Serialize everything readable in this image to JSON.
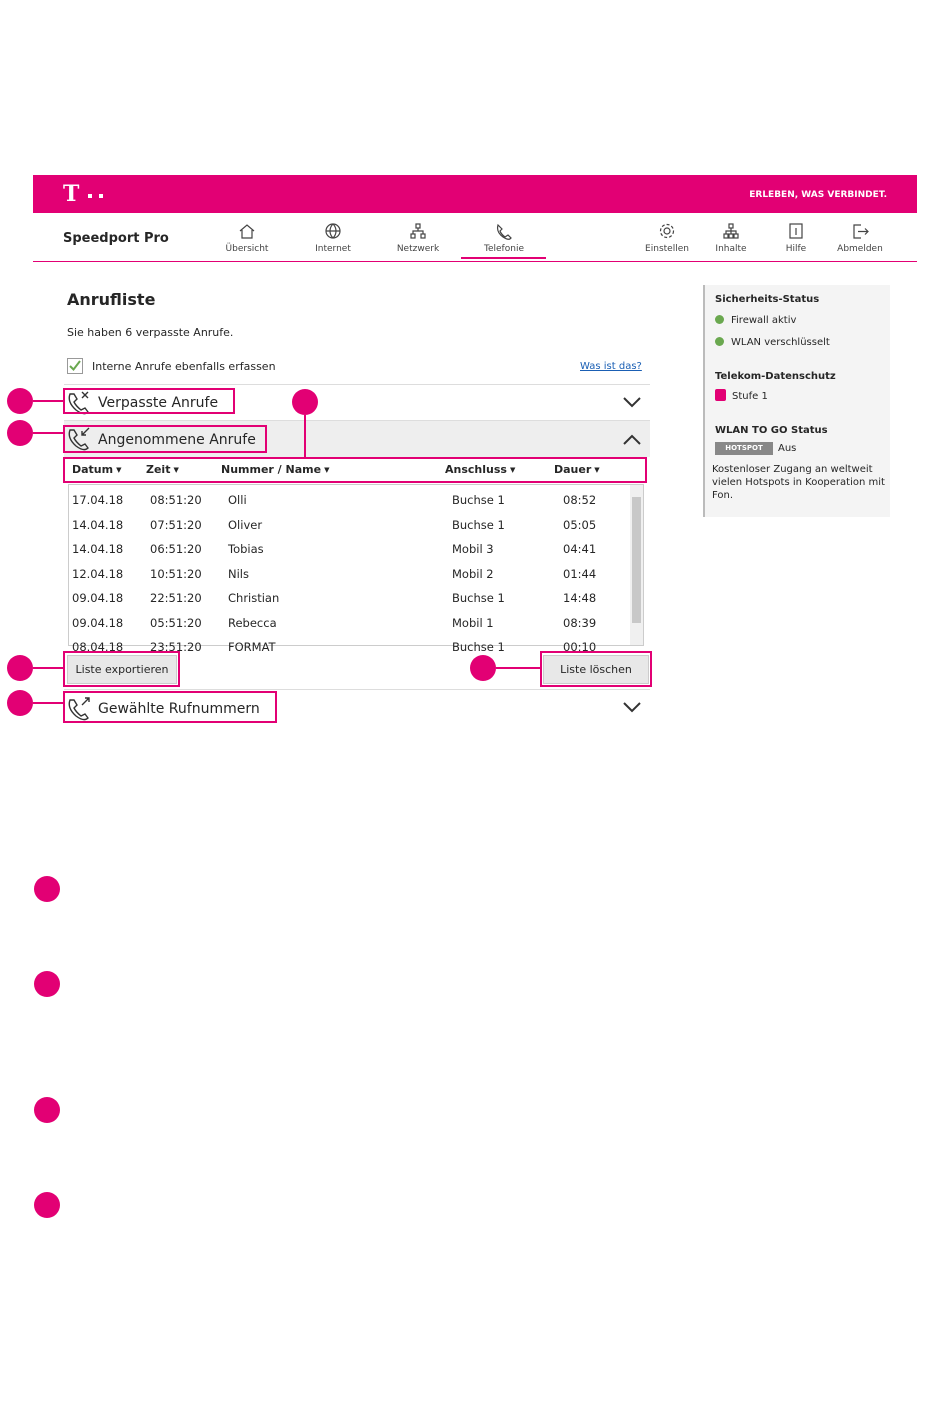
{
  "header": {
    "logo": "T",
    "slogan": "ERLEBEN, WAS VERBINDET."
  },
  "nav": {
    "product": "Speedport Pro",
    "items": [
      "Übersicht",
      "Internet",
      "Netzwerk",
      "Telefonie",
      "Einstellen",
      "Inhalte",
      "Hilfe",
      "Abmelden"
    ]
  },
  "main": {
    "title": "Anrufliste",
    "message": "Sie haben 6 verpasste Anrufe.",
    "checkbox": "Interne Anrufe ebenfalls erfassen",
    "help_link": "Was ist das?",
    "sections": [
      "Verpasste Anrufe",
      "Angenommene Anrufe",
      "Gewählte Rufnummern"
    ],
    "table": {
      "columns": [
        "Datum",
        "Zeit",
        "Nummer / Name",
        "Anschluss",
        "Dauer"
      ],
      "rows": [
        [
          "17.04.18",
          "08:51:20",
          "Olli",
          "Buchse 1",
          "08:52"
        ],
        [
          "14.04.18",
          "07:51:20",
          "Oliver",
          "Buchse 1",
          "05:05"
        ],
        [
          "14.04.18",
          "06:51:20",
          "Tobias",
          "Mobil 3",
          "04:41"
        ],
        [
          "12.04.18",
          "10:51:20",
          "Nils",
          "Mobil 2",
          "01:44"
        ],
        [
          "09.04.18",
          "22:51:20",
          "Christian",
          "Buchse 1",
          "14:48"
        ],
        [
          "09.04.18",
          "05:51:20",
          "Rebecca",
          "Mobil 1",
          "08:39"
        ],
        [
          "08.04.18",
          "23:51:20",
          "FORMAT",
          "Buchse 1",
          "00:10"
        ]
      ]
    },
    "buttons": [
      "Liste exportieren",
      "Liste löschen"
    ]
  },
  "sidebar": {
    "security_title": "Sicherheits-Status",
    "security_items": [
      "Firewall aktiv",
      "WLAN verschlüsselt"
    ],
    "privacy_title": "Telekom-Datenschutz",
    "privacy_level": "Stufe 1",
    "wlan_title": "WLAN TO GO Status",
    "hotspot_badge": "HOTSPOT",
    "hotspot_state": "Aus",
    "wlan_text": "Kostenloser Zugang an weltweit vielen Hotspots in Kooperation mit Fon."
  }
}
